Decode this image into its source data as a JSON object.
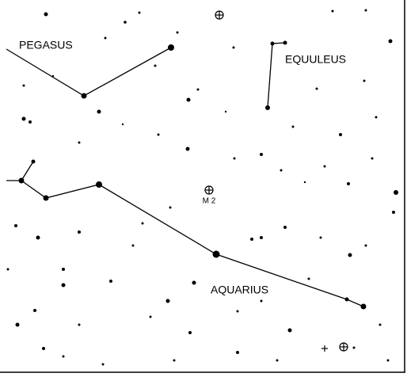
{
  "labels": {
    "pegasus": "PEGASUS",
    "equuleus": "EQUULEUS",
    "aquarius": "AQUARIUS",
    "m2": "M 2"
  }
}
